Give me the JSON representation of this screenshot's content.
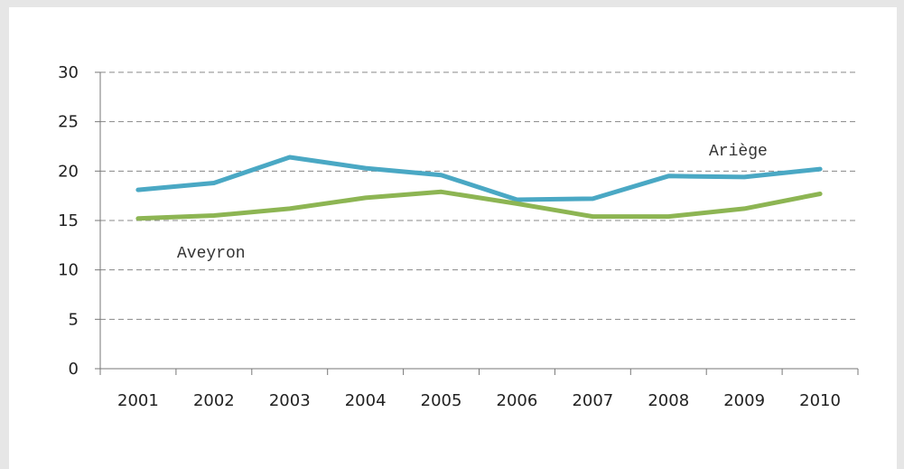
{
  "chart_data": {
    "type": "line",
    "title": "",
    "xlabel": "",
    "ylabel": "",
    "categories": [
      "2001",
      "2002",
      "2003",
      "2004",
      "2005",
      "2006",
      "2007",
      "2008",
      "2009",
      "2010"
    ],
    "ylim": [
      0,
      30
    ],
    "yticks": [
      "0",
      "5",
      "10",
      "15",
      "20",
      "25",
      "30"
    ],
    "grid": "horizontal dashed",
    "series": [
      {
        "name": "Ariège",
        "color": "#4aa8c4",
        "values": [
          18.1,
          18.8,
          21.4,
          20.3,
          19.6,
          17.1,
          17.2,
          19.5,
          19.4,
          20.2
        ]
      },
      {
        "name": "Aveyron",
        "color": "#8db553",
        "values": [
          15.2,
          15.5,
          16.2,
          17.3,
          17.9,
          16.7,
          15.4,
          15.4,
          16.2,
          17.7
        ]
      }
    ]
  }
}
